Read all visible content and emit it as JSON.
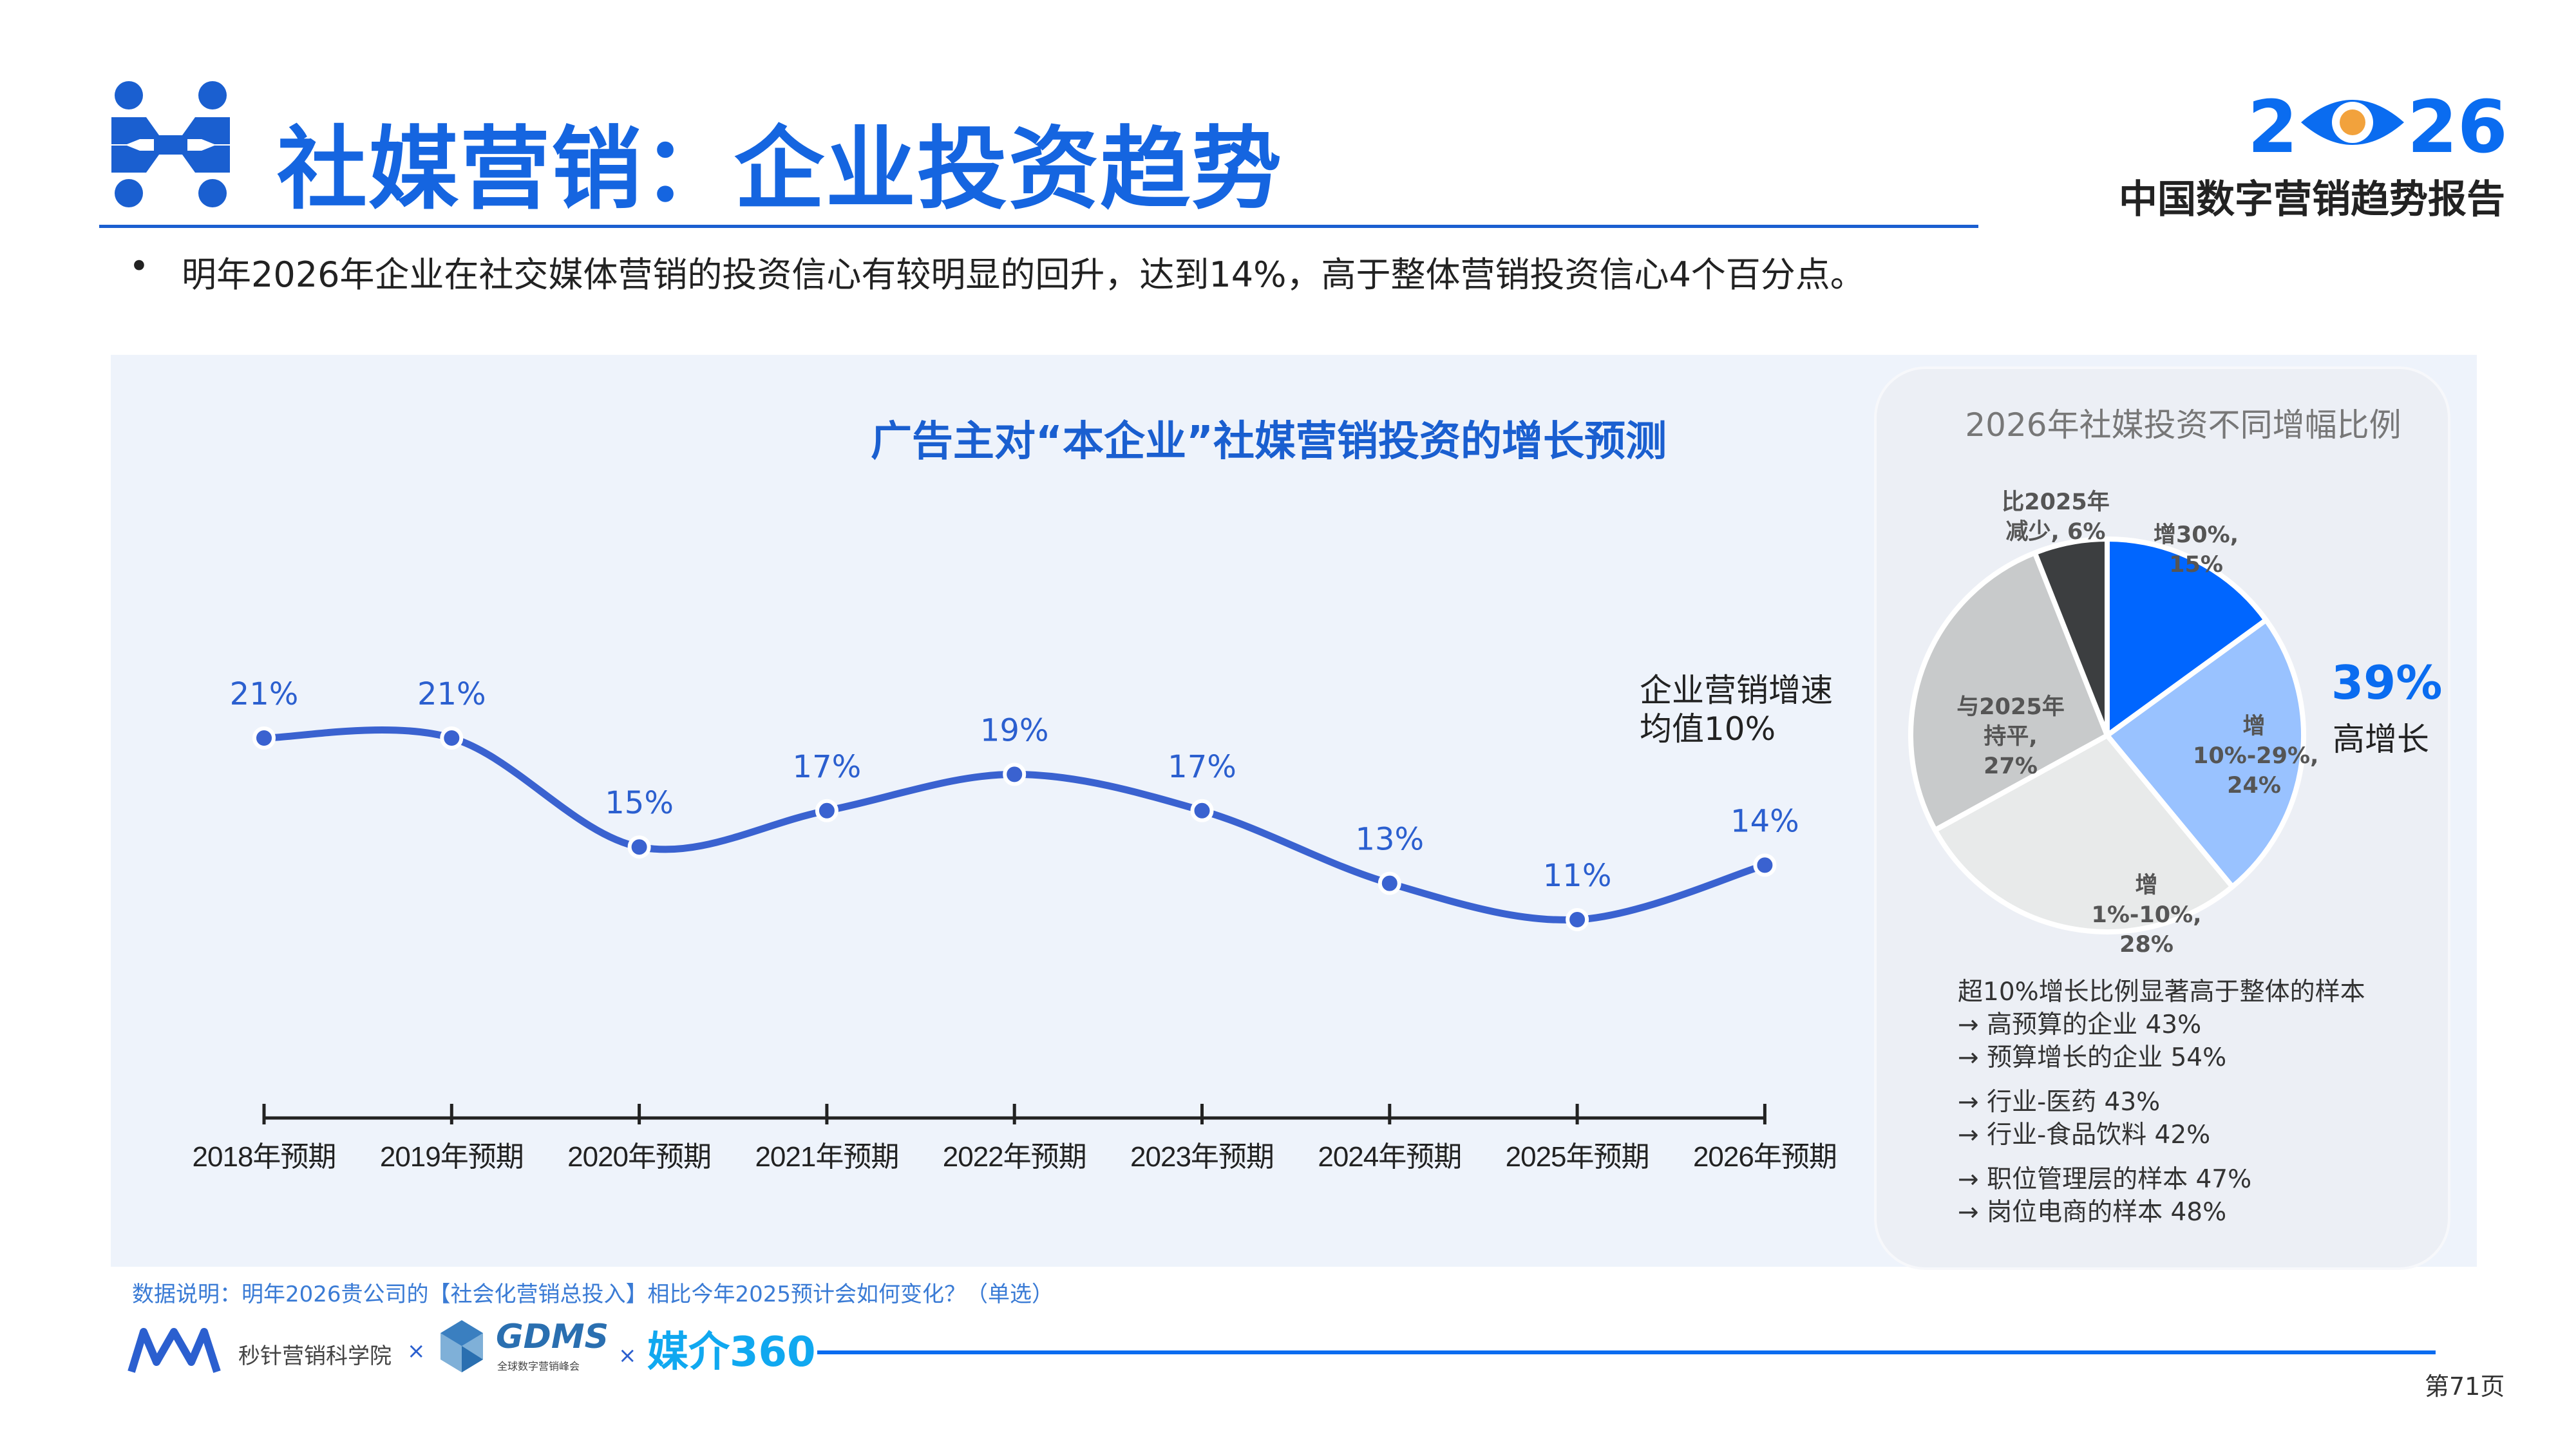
{
  "header": {
    "title": "社媒营销：企业投资趋势",
    "brand_year": "2026",
    "brand_subtitle": "中国数字营销趋势报告",
    "bullet": "明年2026年企业在社交媒体营销的投资信心有较明显的回升，达到14%，高于整体营销投资信心4个百分点。"
  },
  "colors": {
    "accent": "#1a5fd0",
    "line": "#3a62d0",
    "panel_bg": "#eef3fb",
    "card_bg": "#eceff5",
    "brand_dot": "#f2a23c"
  },
  "chart_data": [
    {
      "type": "line",
      "title": "广告主对“本企业”社媒营销投资的增长预测",
      "categories": [
        "2018年预期",
        "2019年预期",
        "2020年预期",
        "2021年预期",
        "2022年预期",
        "2023年预期",
        "2024年预期",
        "2025年预期",
        "2026年预期"
      ],
      "values": [
        21,
        21,
        15,
        17,
        19,
        17,
        13,
        11,
        14
      ],
      "data_labels": [
        "21%",
        "21%",
        "15%",
        "17%",
        "19%",
        "17%",
        "13%",
        "11%",
        "14%"
      ],
      "unit": "%",
      "ylim": [
        0,
        25
      ],
      "grid": false,
      "annotation": "企业营销增速均值10%"
    },
    {
      "type": "pie",
      "title": "2026年社媒投资不同增幅比例",
      "slices": [
        {
          "label": "增30%, 15%",
          "label_lines": [
            "增30%,",
            "15%"
          ],
          "value": 15,
          "color": "#0066ff"
        },
        {
          "label": "增10%-29%, 24%",
          "label_lines": [
            "增10%-",
            "29%, 24%"
          ],
          "value": 24,
          "color": "#99c2ff"
        },
        {
          "label": "增1%-10%, 28%",
          "label_lines": [
            "增1%-10%,",
            "28%"
          ],
          "value": 28,
          "color": "#e8eaea"
        },
        {
          "label": "与2025年持平, 27%",
          "label_lines": [
            "与2025年",
            "持平, 27%"
          ],
          "value": 27,
          "color": "#c8cacb"
        },
        {
          "label": "比2025年减少, 6%",
          "label_lines": [
            "比2025年",
            "减少, 6%"
          ],
          "value": 6,
          "color": "#3c3e40"
        }
      ],
      "highlight": {
        "value": "39%",
        "label": "高增长"
      }
    }
  ],
  "notes": {
    "heading": "超10%增长比例显著高于整体的样本",
    "groups": [
      [
        "→ 高预算的企业 43%",
        "→ 预算增长的企业 54%"
      ],
      [
        "→ 行业-医药 43%",
        "→ 行业-食品饮料 42%"
      ],
      [
        "→ 职位管理层的样本 47%",
        "→ 岗位电商的样本 48%"
      ]
    ]
  },
  "footer": {
    "data_note": "数据说明：明年2026贵公司的【社会化营销总投入】相比今年2025预计会如何变化？（单选）",
    "logo1": "秒针营销科学院",
    "sep": "×",
    "logo2": "GDMS",
    "logo2_sub": "全球数字营销峰会",
    "logo3": "媒介360",
    "page": "第71页"
  }
}
